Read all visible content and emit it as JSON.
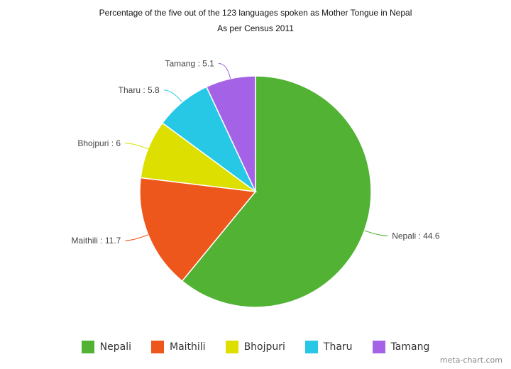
{
  "chart_data": {
    "type": "pie",
    "title": "Percentage of the five out of the 123 languages spoken as Mother Tongue in Nepal",
    "subtitle": "As per Census 2011",
    "series": [
      {
        "name": "Nepali",
        "value": 44.6,
        "color": "#52b234",
        "label": "Nepali : 44.6"
      },
      {
        "name": "Maithili",
        "value": 11.7,
        "color": "#ee571c",
        "label": "Maithili : 11.7"
      },
      {
        "name": "Bhojpuri",
        "value": 6,
        "color": "#dcdf00",
        "label": "Bhojpuri : 6"
      },
      {
        "name": "Tharu",
        "value": 5.8,
        "color": "#26c8e6",
        "label": "Tharu : 5.8"
      },
      {
        "name": "Tamang",
        "value": 5.1,
        "color": "#a463e6",
        "label": "Tamang : 5.1"
      }
    ],
    "legend": "bottom"
  },
  "watermark": "meta-chart.com"
}
